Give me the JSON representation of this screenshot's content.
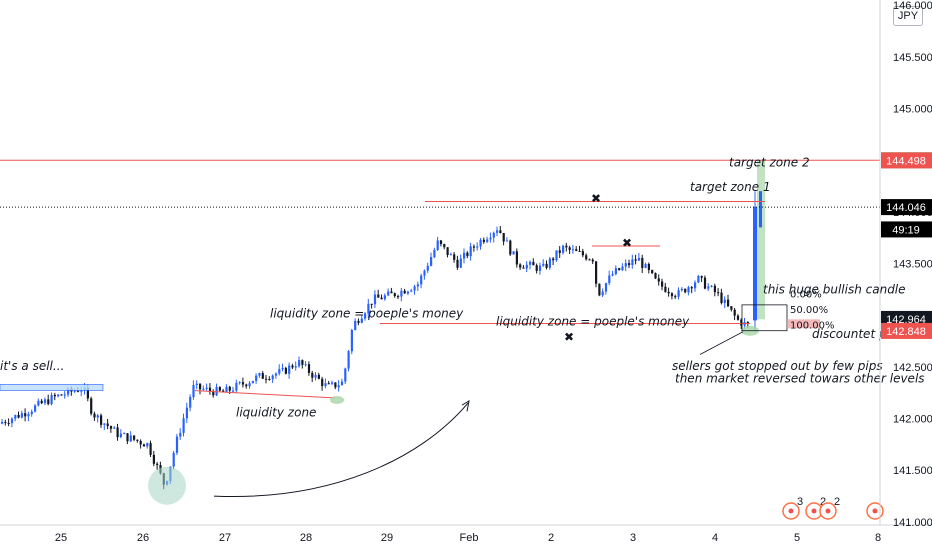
{
  "currency": "JPY",
  "chart_data": {
    "type": "candlestick",
    "y_axis": {
      "ticks": [
        "146.000",
        "145.500",
        "145.000",
        "144.500",
        "144.000",
        "143.500",
        "143.000",
        "142.500",
        "142.000",
        "141.500",
        "141.000"
      ],
      "ylim": [
        140.97,
        146.05
      ]
    },
    "x_axis": {
      "ticks": [
        "25",
        "26",
        "27",
        "28",
        "29",
        "Feb",
        "2",
        "3",
        "4",
        "5",
        "8"
      ]
    },
    "price_tags": [
      {
        "label": "144.499",
        "value": 144.499,
        "color": "#22ab40"
      },
      {
        "label": "144.498",
        "value": 144.498,
        "color": "#ef5350"
      },
      {
        "label": "144.046",
        "value": 144.046,
        "color": "#000000"
      },
      {
        "label": "49:19",
        "value": 143.83,
        "color": "#000000"
      },
      {
        "label": "142.964",
        "value": 142.964,
        "color": "#131722"
      },
      {
        "label": "142.848",
        "value": 142.848,
        "color": "#ef5350"
      }
    ],
    "annotations": {
      "sell": "it's a sell...",
      "liq_low": "liquidity zone",
      "liq_mid": "liquidity zone = poeple's money",
      "liq_right": "liquidity zone = poeple's money",
      "target1": "target zone 1",
      "target2": "target zone 2",
      "bullish": "this huge bullish candle",
      "discount": "discountet price",
      "stopped1": "sellers got stopped out by few pips",
      "stopped2": "then market reversed towars other levels",
      "fib0": "0.00%",
      "fib50": "50.00%",
      "fib100": "100.00%"
    },
    "event_markers": [
      "3",
      "2",
      "2"
    ],
    "colors": {
      "up": "#2962ff",
      "down": "#131722",
      "resistance": "#ef5350"
    }
  }
}
